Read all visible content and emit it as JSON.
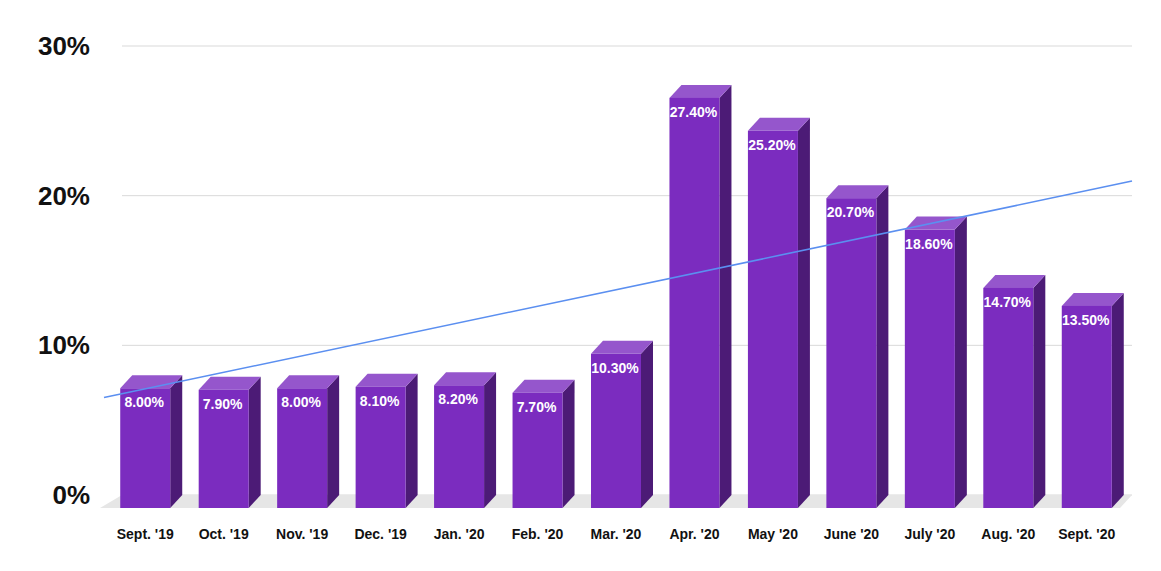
{
  "chart_data": {
    "type": "bar",
    "categories": [
      "Sept. '19",
      "Oct. '19",
      "Nov. '19",
      "Dec. '19",
      "Jan. '20",
      "Feb. '20",
      "Mar. '20",
      "Apr. '20",
      "May '20",
      "June '20",
      "July '20",
      "Aug. '20",
      "Sept. '20"
    ],
    "values": [
      8.0,
      7.9,
      8.0,
      8.1,
      8.2,
      7.7,
      10.3,
      27.4,
      25.2,
      20.7,
      18.6,
      14.7,
      13.5
    ],
    "value_labels": [
      "8.00%",
      "7.90%",
      "8.00%",
      "8.10%",
      "8.20%",
      "7.70%",
      "10.30%",
      "27.40%",
      "25.20%",
      "20.70%",
      "18.60%",
      "14.70%",
      "13.50%"
    ],
    "color": "#7b2cbf",
    "ylim": [
      0,
      30
    ],
    "yticks": [
      {
        "value": 0,
        "label": "0%"
      },
      {
        "value": 10,
        "label": "10%"
      },
      {
        "value": 20,
        "label": "20%"
      },
      {
        "value": 30,
        "label": "30%"
      }
    ],
    "grid": true,
    "data_labels": true
  }
}
